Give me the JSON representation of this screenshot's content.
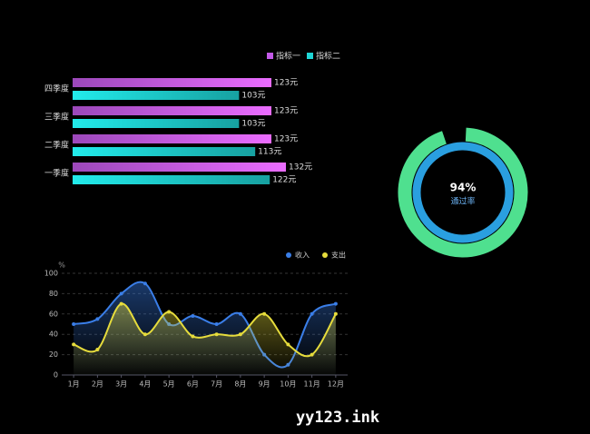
{
  "chart_data": [
    {
      "type": "hbar",
      "categories": [
        "一季度",
        "二季度",
        "三季度",
        "四季度"
      ],
      "series": [
        {
          "name": "指标一",
          "color": "#c35ae8",
          "values": [
            132,
            123,
            123,
            123
          ],
          "value_labels": [
            "132元",
            "123元",
            "123元",
            "123元"
          ]
        },
        {
          "name": "指标二",
          "color": "#1fd6d6",
          "values": [
            122,
            113,
            103,
            103
          ],
          "value_labels": [
            "122元",
            "113元",
            "103元",
            "103元"
          ]
        }
      ]
    },
    {
      "type": "gauge",
      "value": 94,
      "value_label": "94%",
      "label": "通过率",
      "color": "#4fe08f",
      "track_color": "#2a9fe0"
    },
    {
      "type": "line",
      "y_label": "%",
      "categories": [
        "1月",
        "2月",
        "3月",
        "4月",
        "5月",
        "6月",
        "7月",
        "8月",
        "9月",
        "10月",
        "11月",
        "12月"
      ],
      "series": [
        {
          "name": "收入",
          "color": "#3a7ee8",
          "values": [
            50,
            55,
            80,
            90,
            50,
            58,
            50,
            60,
            20,
            10,
            60,
            70
          ]
        },
        {
          "name": "支出",
          "color": "#e6dc3c",
          "values": [
            30,
            25,
            70,
            40,
            62,
            38,
            40,
            40,
            60,
            30,
            20,
            60
          ]
        }
      ],
      "ylim": [
        0,
        100
      ],
      "yticks": [
        0,
        20,
        40,
        60,
        80,
        100
      ],
      "grid": true
    }
  ],
  "watermark": "yy123.ink"
}
